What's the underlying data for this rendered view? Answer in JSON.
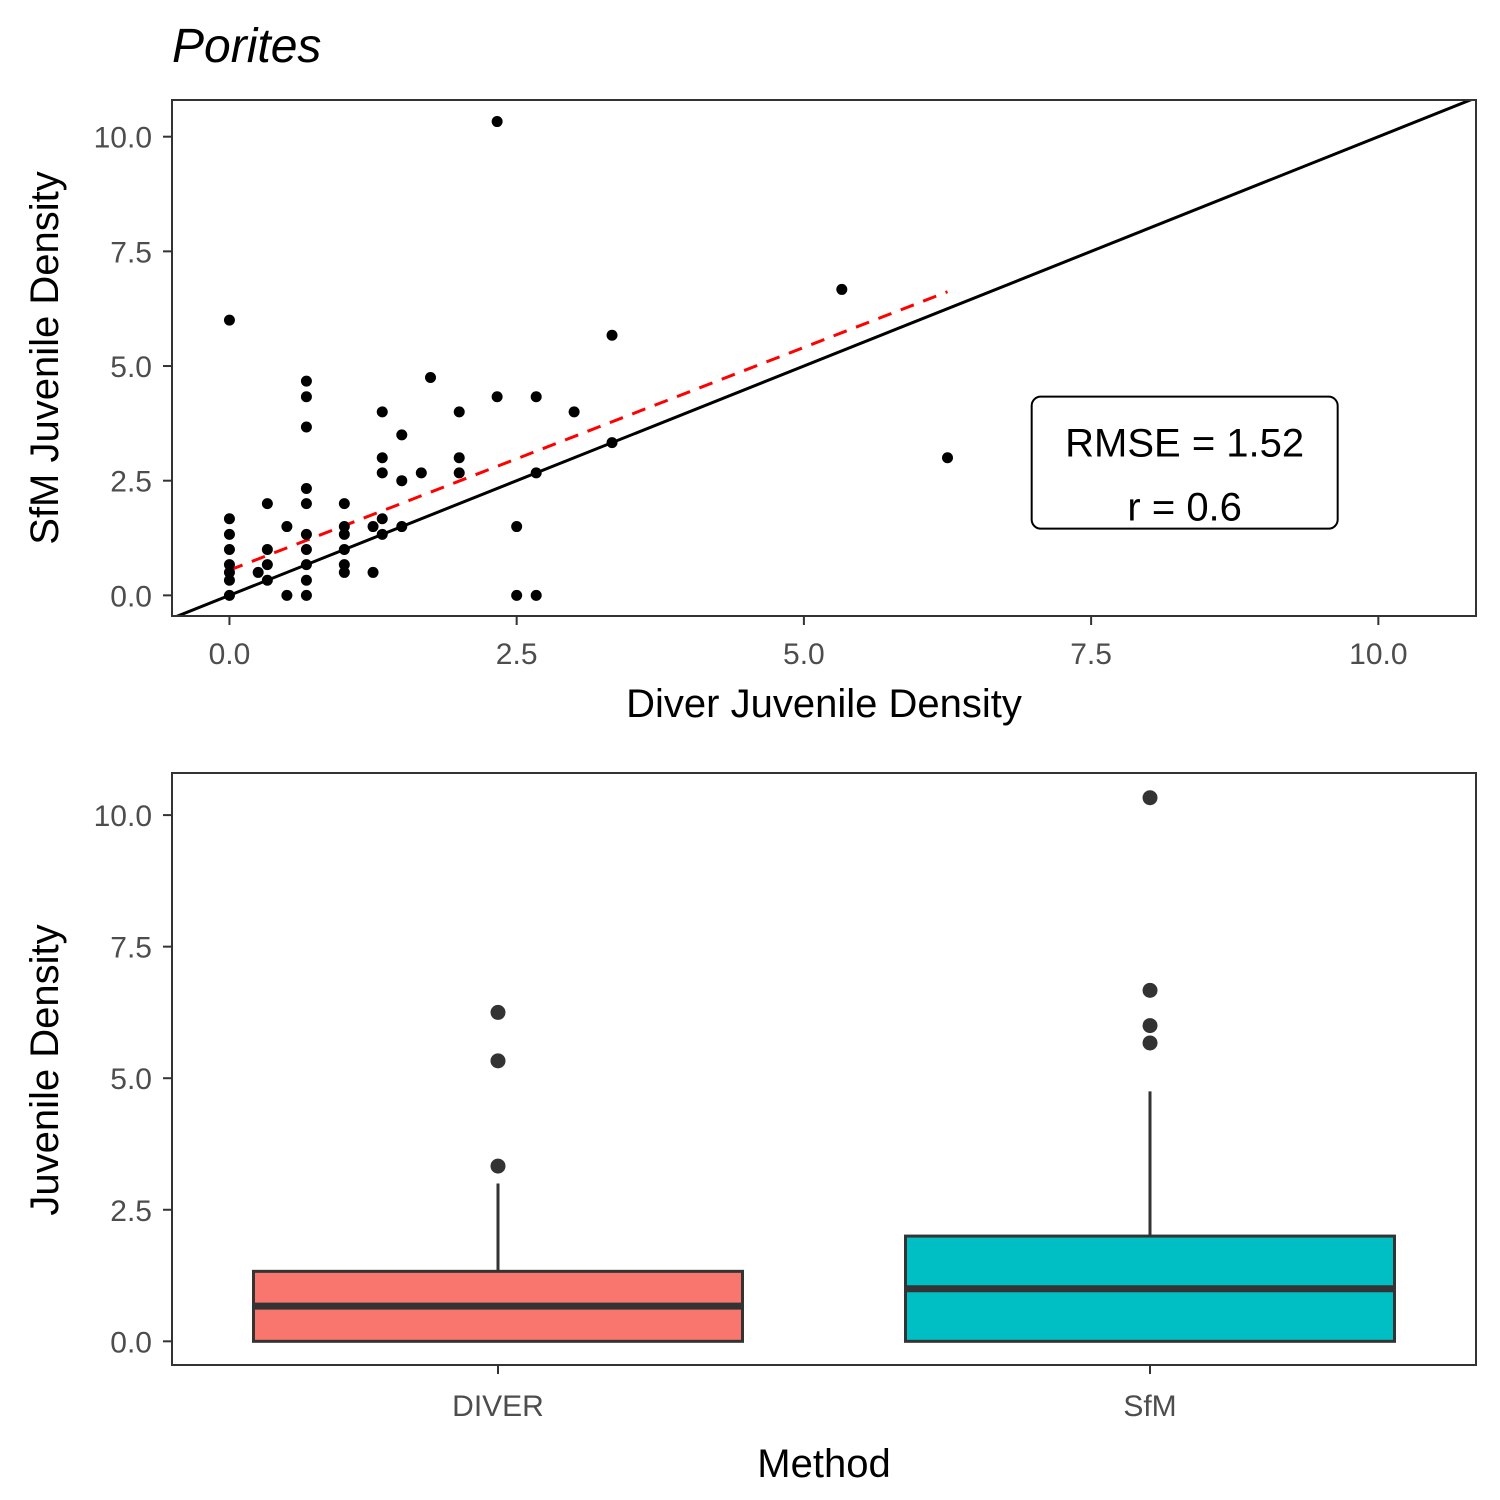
{
  "figure": {
    "title": "Porites"
  },
  "chart_data": [
    {
      "type": "scatter",
      "xlabel": "Diver Juvenile Density",
      "ylabel": "SfM Juvenile Density",
      "xlim": [
        -0.5,
        10.85
      ],
      "ylim": [
        -0.45,
        10.8
      ],
      "xticks": [
        0.0,
        2.5,
        5.0,
        7.5,
        10.0
      ],
      "xtick_labels": [
        "0.0",
        "2.5",
        "5.0",
        "7.5",
        "10.0"
      ],
      "yticks": [
        0.0,
        2.5,
        5.0,
        7.5,
        10.0
      ],
      "ytick_labels": [
        "0.0",
        "2.5",
        "5.0",
        "7.5",
        "10.0"
      ],
      "grid": false,
      "points": [
        {
          "x": 0.0,
          "y": 6.0
        },
        {
          "x": 0.0,
          "y": 1.67
        },
        {
          "x": 0.0,
          "y": 1.33
        },
        {
          "x": 0.0,
          "y": 1.0
        },
        {
          "x": 0.0,
          "y": 0.67
        },
        {
          "x": 0.0,
          "y": 0.5
        },
        {
          "x": 0.0,
          "y": 0.33
        },
        {
          "x": 0.0,
          "y": 0.0
        },
        {
          "x": 0.25,
          "y": 0.5
        },
        {
          "x": 0.33,
          "y": 2.0
        },
        {
          "x": 0.33,
          "y": 1.0
        },
        {
          "x": 0.33,
          "y": 0.67
        },
        {
          "x": 0.33,
          "y": 0.33
        },
        {
          "x": 0.5,
          "y": 1.5
        },
        {
          "x": 0.5,
          "y": 0.0
        },
        {
          "x": 0.67,
          "y": 4.67
        },
        {
          "x": 0.67,
          "y": 4.33
        },
        {
          "x": 0.67,
          "y": 3.67
        },
        {
          "x": 0.67,
          "y": 2.33
        },
        {
          "x": 0.67,
          "y": 2.0
        },
        {
          "x": 0.67,
          "y": 1.33
        },
        {
          "x": 0.67,
          "y": 1.0
        },
        {
          "x": 0.67,
          "y": 0.67
        },
        {
          "x": 0.67,
          "y": 0.33
        },
        {
          "x": 0.67,
          "y": 0.0
        },
        {
          "x": 1.0,
          "y": 2.0
        },
        {
          "x": 1.0,
          "y": 1.5
        },
        {
          "x": 1.0,
          "y": 1.33
        },
        {
          "x": 1.0,
          "y": 1.0
        },
        {
          "x": 1.0,
          "y": 0.67
        },
        {
          "x": 1.0,
          "y": 0.5
        },
        {
          "x": 1.25,
          "y": 1.5
        },
        {
          "x": 1.25,
          "y": 0.5
        },
        {
          "x": 1.33,
          "y": 4.0
        },
        {
          "x": 1.33,
          "y": 3.0
        },
        {
          "x": 1.33,
          "y": 2.67
        },
        {
          "x": 1.33,
          "y": 1.67
        },
        {
          "x": 1.33,
          "y": 1.33
        },
        {
          "x": 1.5,
          "y": 3.5
        },
        {
          "x": 1.5,
          "y": 2.5
        },
        {
          "x": 1.5,
          "y": 1.5
        },
        {
          "x": 1.67,
          "y": 2.67
        },
        {
          "x": 1.75,
          "y": 4.75
        },
        {
          "x": 2.0,
          "y": 4.0
        },
        {
          "x": 2.0,
          "y": 3.0
        },
        {
          "x": 2.0,
          "y": 2.67
        },
        {
          "x": 2.33,
          "y": 10.33
        },
        {
          "x": 2.33,
          "y": 4.33
        },
        {
          "x": 2.5,
          "y": 1.5
        },
        {
          "x": 2.5,
          "y": 0.0
        },
        {
          "x": 2.67,
          "y": 4.33
        },
        {
          "x": 2.67,
          "y": 2.67
        },
        {
          "x": 2.67,
          "y": 0.0
        },
        {
          "x": 3.0,
          "y": 4.0
        },
        {
          "x": 3.33,
          "y": 5.67
        },
        {
          "x": 3.33,
          "y": 3.33
        },
        {
          "x": 5.33,
          "y": 6.67
        },
        {
          "x": 6.25,
          "y": 3.0
        }
      ],
      "identity_line": {
        "slope": 1,
        "intercept": 0,
        "color": "#000000"
      },
      "fit_line": {
        "x": [
          0.0,
          6.25
        ],
        "y": [
          0.55,
          6.62
        ],
        "color": "#ff0000",
        "style": "dashed"
      },
      "annotation": {
        "line1": "RMSE = 1.52",
        "line2": "r = 0.6",
        "x": 7.0,
        "y": 2.85
      }
    },
    {
      "type": "box",
      "xlabel": "Method",
      "ylabel": "Juvenile Density",
      "categories": [
        "DIVER",
        "SfM"
      ],
      "ylim": [
        -0.45,
        10.8
      ],
      "yticks": [
        0.0,
        2.5,
        5.0,
        7.5,
        10.0
      ],
      "ytick_labels": [
        "0.0",
        "2.5",
        "5.0",
        "7.5",
        "10.0"
      ],
      "grid": false,
      "boxes": [
        {
          "name": "DIVER",
          "min": 0.0,
          "q1": 0.0,
          "median": 0.67,
          "q3": 1.33,
          "max": 3.0,
          "outliers": [
            6.25,
            5.33,
            3.33
          ],
          "fill": "#f8766d"
        },
        {
          "name": "SfM",
          "min": 0.0,
          "q1": 0.0,
          "median": 1.0,
          "q3": 2.0,
          "max": 4.75,
          "outliers": [
            10.33,
            6.67,
            6.0,
            5.67
          ],
          "fill": "#00bfc4"
        }
      ]
    }
  ]
}
